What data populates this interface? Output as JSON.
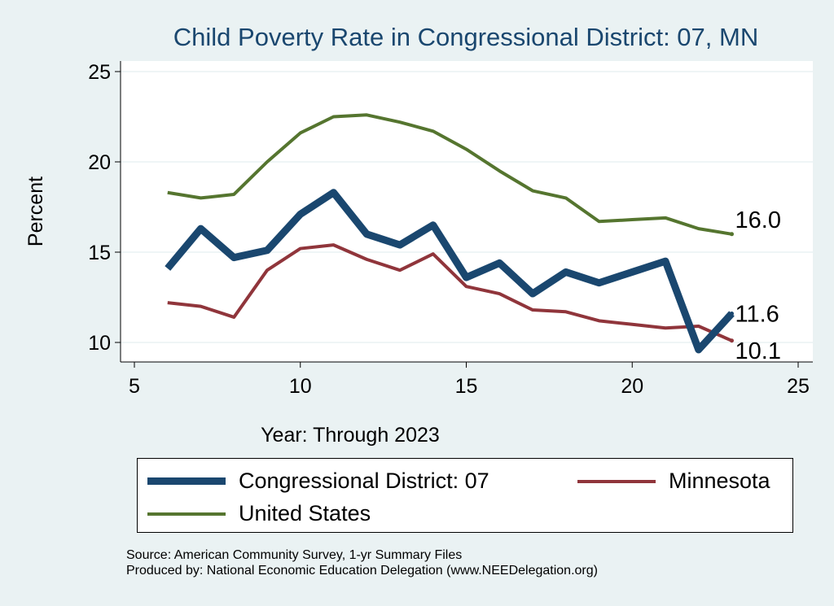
{
  "chart_data": {
    "type": "line",
    "title": "Child Poverty Rate in Congressional District:  07, MN",
    "xlabel": "Year: Through 2023",
    "ylabel": "Percent",
    "xlim": [
      5,
      25
    ],
    "ylim": [
      8.9,
      26.2
    ],
    "xticks": [
      "5",
      "10",
      "15",
      "20",
      "25"
    ],
    "yticks": [
      "10",
      "15",
      "20",
      "25"
    ],
    "x": [
      6,
      7,
      8,
      9,
      10,
      11,
      12,
      13,
      14,
      15,
      16,
      17,
      18,
      19,
      20,
      21,
      22,
      23
    ],
    "series": [
      {
        "name": "Congressional District:  07",
        "color": "#1a476f",
        "values": [
          14.1,
          16.3,
          14.7,
          15.1,
          17.1,
          18.3,
          16.0,
          15.4,
          16.5,
          13.6,
          14.4,
          12.7,
          13.9,
          13.3,
          13.9,
          14.5,
          9.6,
          11.6
        ],
        "end_label": "11.6"
      },
      {
        "name": "Minnesota",
        "color": "#90353b",
        "values": [
          12.2,
          12.0,
          11.4,
          14.0,
          15.2,
          15.4,
          14.6,
          14.0,
          14.9,
          13.1,
          12.7,
          11.8,
          11.7,
          11.2,
          11.0,
          10.8,
          10.9,
          10.1
        ],
        "end_label": "10.1"
      },
      {
        "name": "United States",
        "color": "#55752f",
        "values": [
          18.3,
          18.0,
          18.2,
          20.0,
          21.6,
          22.5,
          22.6,
          22.2,
          21.7,
          20.7,
          19.5,
          18.4,
          18.0,
          16.7,
          16.8,
          16.9,
          16.3,
          16.0
        ],
        "end_label": "16.0"
      }
    ],
    "legend_position": "bottom",
    "grid": true
  },
  "source": "Source: American Community Survey, 1-yr Summary Files",
  "produced": "Produced by: National Economic Education Delegation (www.NEEDelegation.org)"
}
